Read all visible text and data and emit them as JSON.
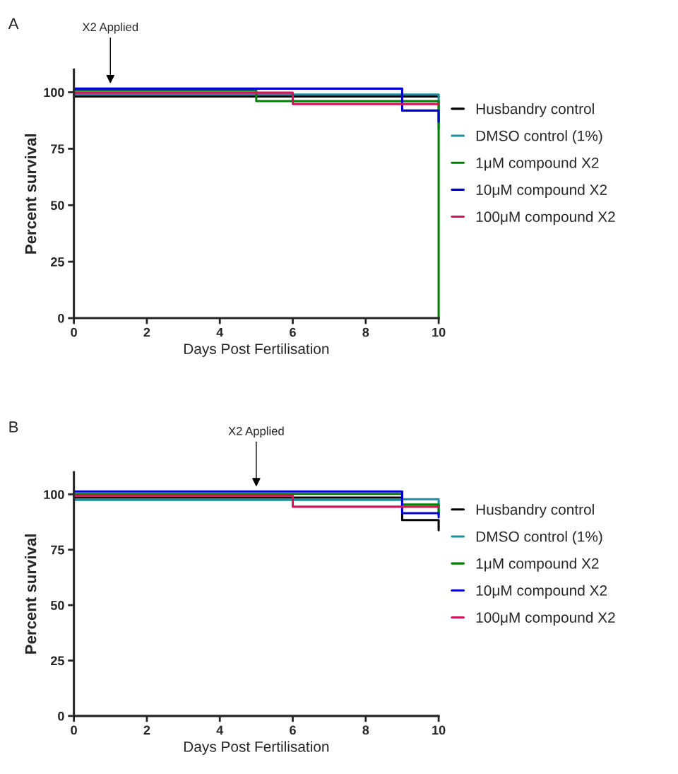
{
  "chart_data": [
    {
      "type": "step",
      "title": "A",
      "xlabel": "Days Post Fertilisation",
      "ylabel": "Percent survival",
      "xlim": [
        0,
        10
      ],
      "ylim": [
        0,
        110
      ],
      "xticks": [
        0,
        2,
        4,
        6,
        8,
        10
      ],
      "yticks": [
        0,
        25,
        50,
        75,
        100
      ],
      "grid": false,
      "legend": "right",
      "annotations": [
        {
          "text": "X2 Applied",
          "x": 1,
          "y": 103
        }
      ],
      "series": [
        {
          "name": "Husbandry control",
          "color": "#000000",
          "x": [
            0,
            10
          ],
          "values": [
            98.1,
            98.1
          ]
        },
        {
          "name": "DMSO control (1%)",
          "color": "#1f8ca0",
          "x": [
            0,
            10
          ],
          "values": [
            99,
            84
          ]
        },
        {
          "name": "1μM compound X2",
          "color": "#008000",
          "x": [
            0,
            5,
            10
          ],
          "values": [
            100.8,
            96.1,
            0
          ]
        },
        {
          "name": "10μM compound X2",
          "color": "#0000cc",
          "x": [
            0,
            9,
            10
          ],
          "values": [
            101.6,
            91.9,
            87
          ]
        },
        {
          "name": "100μM compound X2",
          "color": "#d4145a",
          "x": [
            0,
            6,
            10
          ],
          "values": [
            99.8,
            94.8,
            94.8
          ]
        }
      ]
    },
    {
      "type": "step",
      "title": "B",
      "xlabel": "Days Post Fertilisation",
      "ylabel": "Percent survival",
      "xlim": [
        0,
        10
      ],
      "ylim": [
        0,
        110
      ],
      "xticks": [
        0,
        2,
        4,
        6,
        8,
        10
      ],
      "yticks": [
        0,
        25,
        50,
        75,
        100
      ],
      "grid": false,
      "legend": "right",
      "annotations": [
        {
          "text": "X2 Applied",
          "x": 5,
          "y": 102.6
        }
      ],
      "series": [
        {
          "name": "Husbandry control",
          "color": "#000000",
          "x": [
            0,
            9,
            10
          ],
          "values": [
            98.5,
            88.4,
            83.8
          ]
        },
        {
          "name": "DMSO control (1%)",
          "color": "#1f8ca0",
          "x": [
            0,
            9,
            10
          ],
          "values": [
            97.5,
            97.8,
            91.7
          ]
        },
        {
          "name": "1μM compound X2",
          "color": "#008000",
          "x": [
            0,
            9,
            10
          ],
          "values": [
            100.2,
            95.4,
            90.8
          ]
        },
        {
          "name": "10μM compound X2",
          "color": "#0000cc",
          "x": [
            0,
            9,
            10
          ],
          "values": [
            101.3,
            91.5,
            89.6
          ]
        },
        {
          "name": "100μM compound X2",
          "color": "#d4145a",
          "x": [
            0,
            6,
            10
          ],
          "values": [
            99.4,
            94.4,
            94.4
          ]
        }
      ]
    }
  ]
}
